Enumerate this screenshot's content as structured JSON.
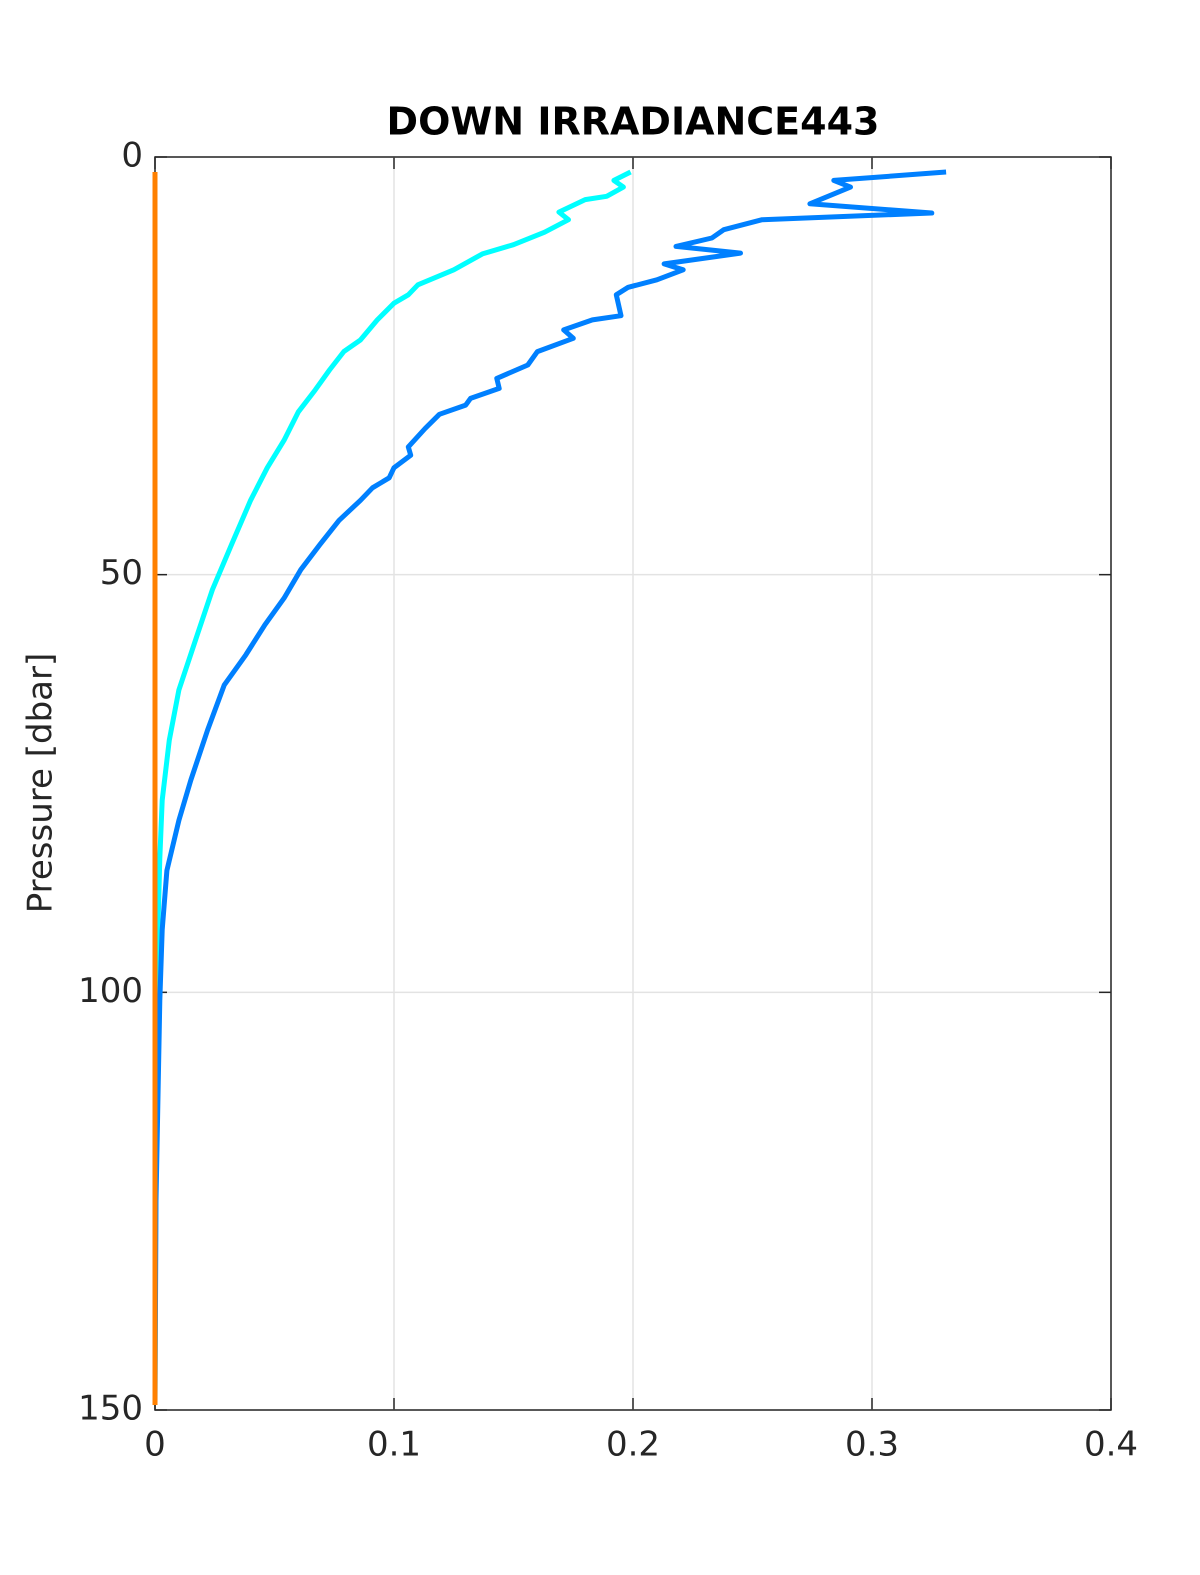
{
  "chart_data": {
    "type": "line",
    "title": "DOWN IRRADIANCE443",
    "ylabel": "Pressure [dbar]",
    "xlim": [
      0,
      0.4
    ],
    "xticks": [
      0,
      0.1,
      0.2,
      0.3,
      0.4
    ],
    "ylim": [
      0,
      150
    ],
    "yticks": [
      0,
      50,
      100,
      150
    ],
    "y_reversed": true,
    "grid": true,
    "series": [
      {
        "color": "#00ffff",
        "x": [
          0.199,
          0.192,
          0.196,
          0.189,
          0.18,
          0.169,
          0.173,
          0.163,
          0.15,
          0.137,
          0.125,
          0.11,
          0.106,
          0.1,
          0.093,
          0.086,
          0.079,
          0.073,
          0.067,
          0.06,
          0.054,
          0.047,
          0.04,
          0.032,
          0.024,
          0.017,
          0.01,
          0.006,
          0.003,
          0.002,
          0.001,
          0.0004,
          0
        ],
        "values": [
          1.8,
          2.8,
          3.6,
          4.7,
          5.1,
          6.6,
          7.5,
          9.0,
          10.5,
          11.6,
          13.5,
          15.3,
          16.5,
          17.5,
          19.5,
          21.9,
          23.3,
          25.5,
          27.9,
          30.5,
          33.9,
          37.2,
          41.1,
          46.4,
          51.8,
          57.8,
          63.8,
          69.8,
          77,
          84,
          95,
          113,
          149.4
        ]
      },
      {
        "color": "#0080ff",
        "x": [
          0.331,
          0.284,
          0.291,
          0.274,
          0.325,
          0.254,
          0.238,
          0.233,
          0.218,
          0.245,
          0.213,
          0.221,
          0.21,
          0.198,
          0.193,
          0.195,
          0.183,
          0.171,
          0.175,
          0.16,
          0.156,
          0.143,
          0.144,
          0.132,
          0.13,
          0.119,
          0.113,
          0.106,
          0.107,
          0.1,
          0.098,
          0.091,
          0.086,
          0.077,
          0.069,
          0.061,
          0.054,
          0.046,
          0.038,
          0.029,
          0.022,
          0.015,
          0.01,
          0.005,
          0.003,
          0.002,
          0.0004,
          0
        ],
        "values": [
          1.8,
          2.8,
          3.6,
          5.6,
          6.7,
          7.5,
          8.7,
          9.7,
          10.7,
          11.5,
          12.8,
          13.5,
          14.7,
          15.6,
          16.5,
          19.0,
          19.5,
          20.7,
          21.7,
          23.3,
          24.9,
          26.5,
          27.7,
          28.9,
          29.7,
          30.8,
          32.5,
          34.7,
          35.7,
          37.2,
          38.4,
          39.6,
          41.1,
          43.5,
          46.4,
          49.4,
          52.8,
          56,
          59.6,
          63.2,
          68.6,
          74.6,
          79.4,
          85.4,
          92.5,
          101,
          125,
          149.4
        ]
      },
      {
        "color": "#ff8000",
        "x": [
          0,
          0
        ],
        "values": [
          1.8,
          149.4
        ]
      }
    ]
  }
}
